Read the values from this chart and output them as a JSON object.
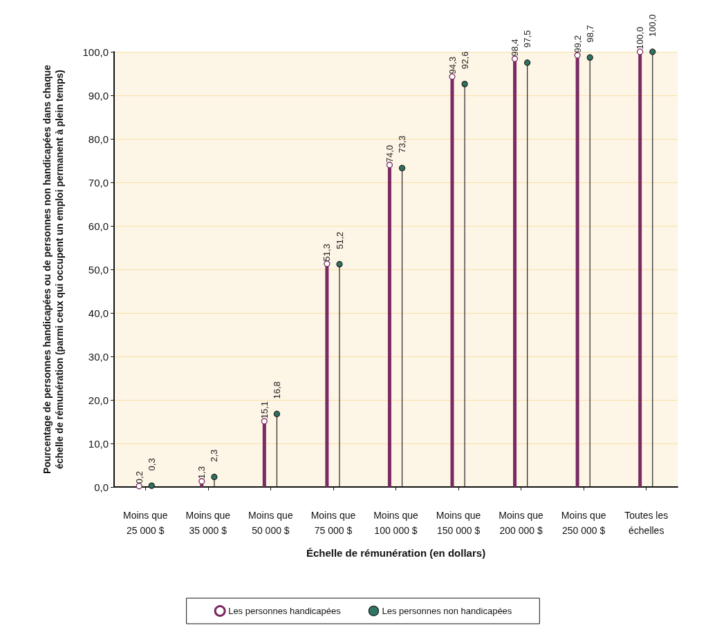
{
  "chart_data": {
    "type": "lollipop",
    "xlabel": "Échelle de rémunération (en dollars)",
    "ylabel": "Pourcentage de personnes handicapées ou de personnes non handicapées dans chaque\néchelle de rémunération (parmi ceux qui occupent un emploi permanent à plein temps)",
    "categories": [
      "Moins que\n25 000 $",
      "Moins que\n35 000 $",
      "Moins que\n50 000 $",
      "Moins que\n75 000 $",
      "Moins que\n100 000 $",
      "Moins que\n150 000 $",
      "Moins que\n200 000 $",
      "Moins que\n250 000 $",
      "Toutes les\néchelles"
    ],
    "series": [
      {
        "name": "Les personnes handicapées",
        "color": "#7b2a63",
        "marker": "circle",
        "values": [
          0.2,
          1.3,
          15.1,
          51.3,
          74.0,
          94.3,
          98.4,
          99.2,
          100.0
        ],
        "value_labels": [
          "0,2",
          "1,3",
          "15,1",
          "51,3",
          "74,0",
          "94,3",
          "98,4",
          "99,2",
          "100,0"
        ]
      },
      {
        "name": "Les personnes non handicapées",
        "color": "#2e7563",
        "marker": "circle",
        "values": [
          0.3,
          2.3,
          16.8,
          51.2,
          73.3,
          92.6,
          97.5,
          98.7,
          100.0
        ],
        "value_labels": [
          "0,3",
          "2,3",
          "16,8",
          "51,2",
          "73,3",
          "92,6",
          "97,5",
          "98,7",
          "100,0"
        ]
      }
    ],
    "ylim": [
      0,
      100
    ],
    "yticks": [
      {
        "value": 0,
        "label": "0,0"
      },
      {
        "value": 10,
        "label": "10,0"
      },
      {
        "value": 20,
        "label": "20,0"
      },
      {
        "value": 30,
        "label": "30,0"
      },
      {
        "value": 40,
        "label": "40,0"
      },
      {
        "value": 50,
        "label": "50,0"
      },
      {
        "value": 60,
        "label": "60,0"
      },
      {
        "value": 70,
        "label": "70,0"
      },
      {
        "value": 80,
        "label": "80,0"
      },
      {
        "value": 90,
        "label": "90,0"
      },
      {
        "value": 100,
        "label": "100,0"
      }
    ],
    "grid": "y",
    "legend": "bottom"
  }
}
